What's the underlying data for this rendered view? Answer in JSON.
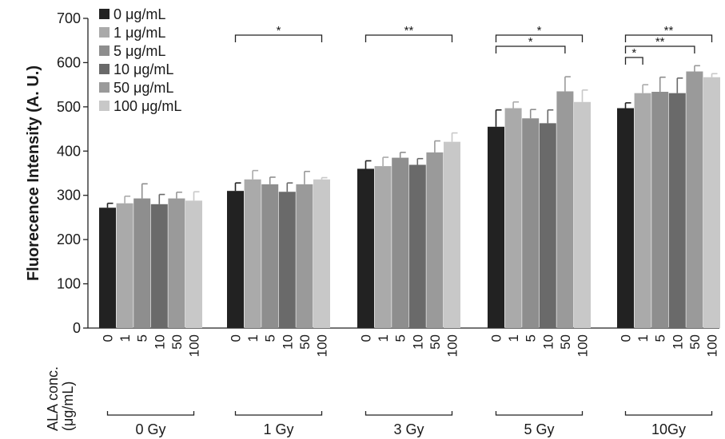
{
  "chart_data": {
    "type": "bar",
    "title": "",
    "ylabel": "Fluorecence Intensity  (A. U.)",
    "xlabel_lines": [
      "ALA conc.",
      "(μg/mL)"
    ],
    "ylim": [
      0,
      700
    ],
    "yticks": [
      0,
      100,
      200,
      300,
      400,
      500,
      600,
      700
    ],
    "legend_position": "top-left",
    "groups": [
      "0 Gy",
      "1 Gy",
      "3 Gy",
      "5 Gy",
      "10Gy"
    ],
    "category_labels": [
      "0",
      "1",
      "5",
      "10",
      "50",
      "100"
    ],
    "series": [
      {
        "name": "0 μg/mL",
        "color": "#222222",
        "values": [
          272,
          310,
          360,
          455,
          497
        ],
        "errors": [
          10,
          18,
          18,
          38,
          12
        ]
      },
      {
        "name": "1 μg/mL",
        "color": "#aaaaaa",
        "values": [
          282,
          336,
          366,
          497,
          531
        ],
        "errors": [
          16,
          20,
          20,
          14,
          19
        ]
      },
      {
        "name": "5 μg/mL",
        "color": "#8e8e8e",
        "values": [
          293,
          325,
          385,
          474,
          534
        ],
        "errors": [
          33,
          16,
          12,
          20,
          33
        ]
      },
      {
        "name": "10 μg/mL",
        "color": "#6a6a6a",
        "values": [
          280,
          308,
          369,
          463,
          531
        ],
        "errors": [
          22,
          20,
          14,
          30,
          34
        ]
      },
      {
        "name": "50 μg/mL",
        "color": "#9a9a9a",
        "values": [
          293,
          325,
          397,
          535,
          580
        ],
        "errors": [
          14,
          29,
          26,
          33,
          13
        ]
      },
      {
        "name": "100 μg/mL",
        "color": "#c8c8c8",
        "values": [
          288,
          336,
          421,
          511,
          567
        ],
        "errors": [
          20,
          4,
          20,
          27,
          8
        ]
      }
    ],
    "significance": [
      {
        "group": 1,
        "from": 0,
        "to": 5,
        "label": "*"
      },
      {
        "group": 2,
        "from": 0,
        "to": 5,
        "label": "**"
      },
      {
        "group": 3,
        "from": 0,
        "to": 5,
        "label": "*"
      },
      {
        "group": 3,
        "from": 0,
        "to": 4,
        "label": "*"
      },
      {
        "group": 4,
        "from": 0,
        "to": 5,
        "label": "**"
      },
      {
        "group": 4,
        "from": 0,
        "to": 4,
        "label": "**"
      },
      {
        "group": 4,
        "from": 0,
        "to": 1,
        "label": "*"
      }
    ]
  }
}
